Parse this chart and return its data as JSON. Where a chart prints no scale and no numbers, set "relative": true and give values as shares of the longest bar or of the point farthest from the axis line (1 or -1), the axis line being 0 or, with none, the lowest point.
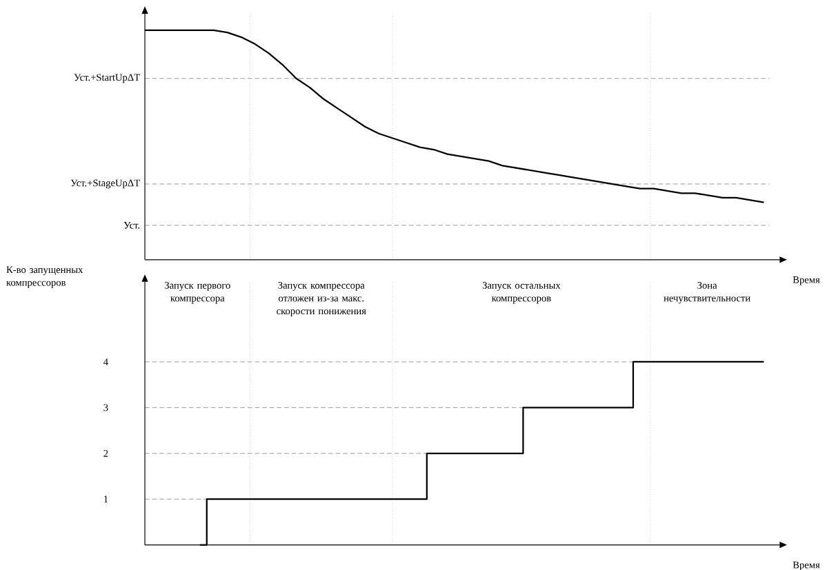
{
  "chart_data": [
    {
      "type": "line",
      "xlabel": "Время",
      "relative": true,
      "tick_labels": false,
      "color": "#000000",
      "categories": [
        null,
        null,
        null,
        null,
        null,
        null,
        null,
        null,
        null,
        null,
        null,
        null,
        null,
        null,
        null,
        null,
        null,
        null,
        null,
        null,
        null,
        null,
        null,
        null,
        null,
        null,
        null,
        null,
        null,
        null,
        null,
        null,
        null,
        null,
        null,
        null,
        null,
        null,
        null,
        null,
        null,
        null,
        null,
        null,
        null,
        null
      ],
      "values": [
        1.0,
        1.0,
        1.0,
        1.0,
        1.0,
        1.0,
        0.99,
        0.97,
        0.94,
        0.9,
        0.85,
        0.79,
        0.75,
        0.7,
        0.66,
        0.62,
        0.58,
        0.55,
        0.53,
        0.51,
        0.49,
        0.48,
        0.46,
        0.45,
        0.44,
        0.43,
        0.41,
        0.4,
        0.39,
        0.38,
        0.37,
        0.36,
        0.35,
        0.34,
        0.33,
        0.32,
        0.31,
        0.31,
        0.3,
        0.29,
        0.29,
        0.28,
        0.27,
        0.27,
        0.26,
        0.25
      ],
      "ref_lines": [
        {
          "axis": "y",
          "value": 0.79,
          "label": "Уст.+StartUpΔT",
          "color": "#808080",
          "line_style": "dashed"
        },
        {
          "axis": "y",
          "value": 0.33,
          "label": "Уст.+StageUpΔT",
          "color": "#808080",
          "line_style": "dashed"
        },
        {
          "axis": "y",
          "value": 0.15,
          "label": "Уст.",
          "color": "#808080",
          "line_style": "dashed"
        }
      ]
    },
    {
      "type": "step",
      "xlabel": "Время",
      "ylabel": "К-во запущенных компрессоров",
      "tick_labels": "y",
      "color": "#000000",
      "categories": [
        null,
        null,
        null,
        null,
        null,
        null,
        null,
        null,
        null,
        null,
        null,
        null,
        null,
        null,
        null,
        null,
        null,
        null,
        null,
        null,
        null,
        null,
        null,
        null,
        null,
        null,
        null,
        null,
        null,
        null,
        null,
        null,
        null,
        null,
        null,
        null,
        null,
        null,
        null,
        null,
        null,
        null,
        null,
        null,
        null,
        null
      ],
      "values": [
        null,
        null,
        null,
        null,
        0,
        1,
        1,
        1,
        1,
        1,
        1,
        1,
        1,
        1,
        1,
        1,
        1,
        1,
        1,
        1,
        1,
        2,
        2,
        2,
        2,
        2,
        2,
        2,
        3,
        3,
        3,
        3,
        3,
        3,
        3,
        3,
        4,
        4,
        4,
        4,
        4,
        4,
        4,
        4,
        4,
        4
      ],
      "ylim": [
        0,
        5.75
      ],
      "yticks": [
        1,
        2,
        3,
        4
      ],
      "ref_lines": [
        {
          "axis": "y",
          "value": 1,
          "color": "#808080",
          "line_style": "dashed"
        },
        {
          "axis": "y",
          "value": 2,
          "color": "#808080",
          "line_style": "dashed"
        },
        {
          "axis": "y",
          "value": 3,
          "color": "#808080",
          "line_style": "dashed"
        },
        {
          "axis": "y",
          "value": 4,
          "color": "#808080",
          "line_style": "dashed"
        }
      ],
      "annotations": [
        "Запуск первого компрессора",
        "Запуск компрессора отложен из-за макс. скорости понижения",
        "Запуск остальных компрессоров",
        "Зона нечувствительности"
      ]
    }
  ]
}
